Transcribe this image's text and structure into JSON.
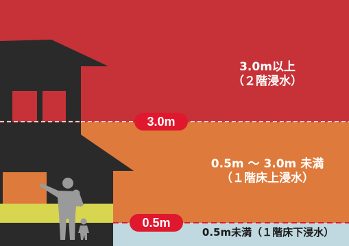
{
  "colors": {
    "zone_high": "#c63238",
    "zone_mid": "#de7a3b",
    "zone_low": "#c0d9e0",
    "badge": "#e0182e",
    "house": "#2a2a2a",
    "people": "#9a9a9a"
  },
  "zones": {
    "high": {
      "line1": "3.0m以上",
      "line2": "（２階浸水）"
    },
    "mid": {
      "line1": "0.5m ～ 3.0m 未満",
      "line2": "（１階床上浸水）"
    },
    "low": {
      "line1": "0.5m未満（１階床下浸水）"
    }
  },
  "markers": {
    "upper": "3.0m",
    "lower": "0.5m"
  }
}
